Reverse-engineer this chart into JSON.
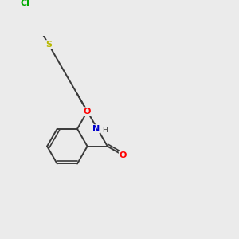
{
  "bg_color": "#ebebeb",
  "bond_color": "#3a3a3a",
  "atom_colors": {
    "O": "#ff0000",
    "N": "#0000cc",
    "S": "#b8b800",
    "Cl": "#00aa00",
    "H": "#3a3a3a"
  },
  "figsize": [
    3.0,
    3.0
  ],
  "dpi": 100,
  "lw": 1.4
}
